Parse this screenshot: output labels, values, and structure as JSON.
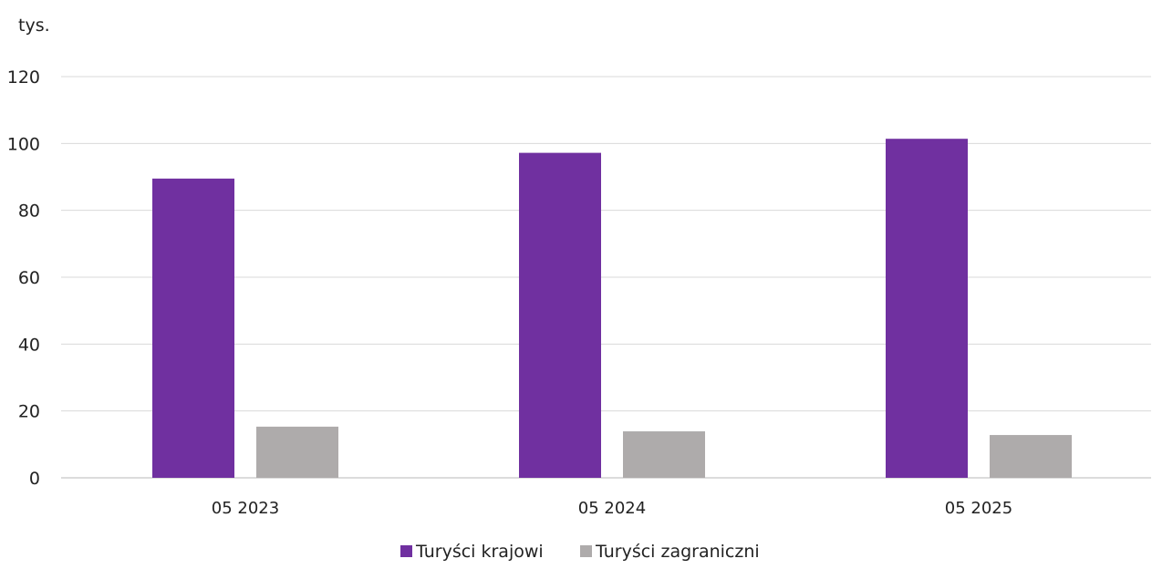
{
  "chart_data": {
    "type": "bar",
    "unit_label": "tys.",
    "categories": [
      "05 2023",
      "05 2024",
      "05 2025"
    ],
    "series": [
      {
        "name": "Turyści krajowi",
        "color": "#7030a0",
        "values": [
          89.5,
          97.2,
          101.4
        ]
      },
      {
        "name": "Turyści zagraniczni",
        "color": "#aeabab",
        "values": [
          15.3,
          13.9,
          12.8
        ]
      }
    ],
    "y_ticks": [
      0,
      20,
      40,
      60,
      80,
      100,
      120
    ],
    "ylim": [
      0,
      120
    ],
    "grid": true,
    "legend_position": "bottom"
  }
}
